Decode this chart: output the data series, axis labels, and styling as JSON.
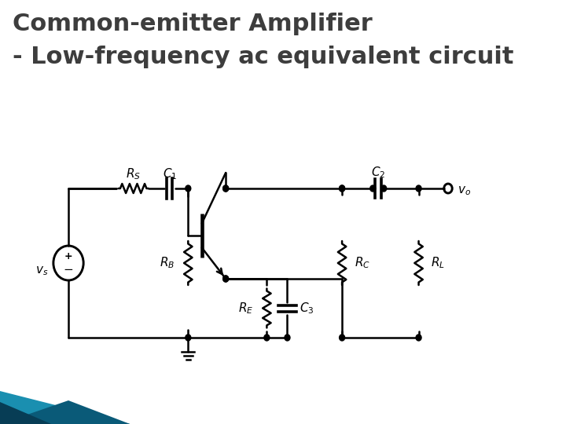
{
  "title_line1": "Common-emitter Amplifier",
  "title_line2": "- Low-frequency ac equivalent circuit",
  "title_color": "#3d3d3d",
  "title_fontsize": 22,
  "bg_color": "#ffffff",
  "circuit_color": "#000000",
  "line_width": 1.8,
  "teal1": "#1a8fb0",
  "teal2": "#0d6e8a",
  "teal3": "#000000"
}
